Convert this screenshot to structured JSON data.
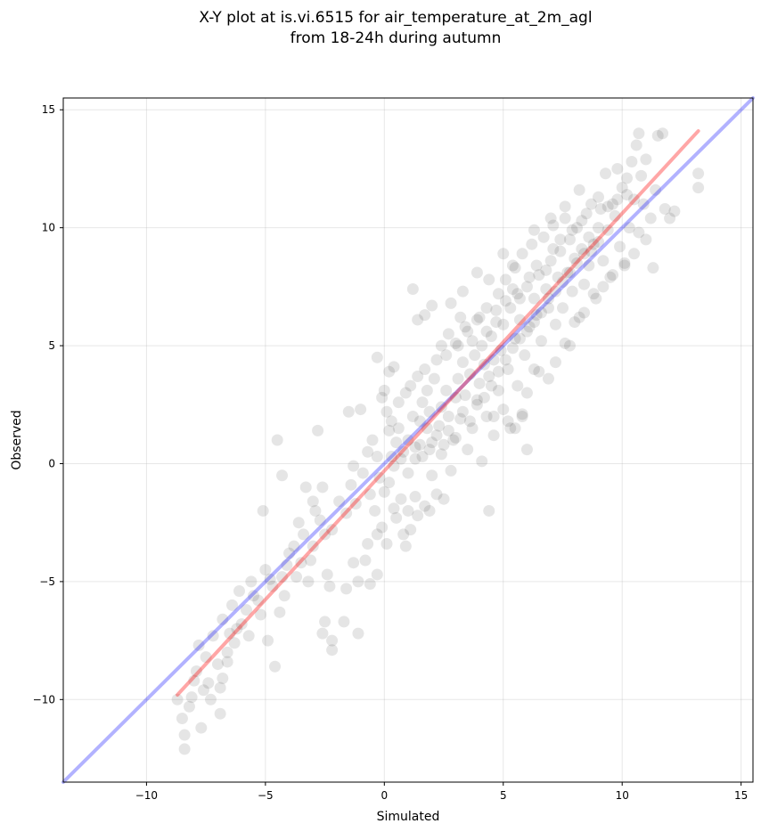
{
  "chart_data": {
    "type": "scatter",
    "title": "X-Y plot at is.vi.6515 for air_temperature_at_2m_agl",
    "subtitle": "from 18-24h during autumn",
    "xlabel": "Simulated",
    "ylabel": "Observed",
    "xlim": [
      -13.5,
      15.5
    ],
    "ylim": [
      -13.5,
      15.5
    ],
    "xticks": [
      -10,
      -5,
      0,
      5,
      10,
      15
    ],
    "yticks": [
      -10,
      -5,
      0,
      5,
      10,
      15
    ],
    "xtick_labels": [
      "−10",
      "−5",
      "0",
      "5",
      "10",
      "15"
    ],
    "ytick_labels": [
      "−10",
      "−5",
      "0",
      "5",
      "10",
      "15"
    ],
    "grid": true,
    "point_color": "#000000",
    "point_alpha": 0.1,
    "lines": [
      {
        "color": "#0000ff",
        "alpha": 0.3,
        "x": [
          -13.5,
          15.5
        ],
        "y": [
          -13.5,
          15.5
        ]
      },
      {
        "color": "#ff0000",
        "alpha": 0.35,
        "x": [
          -8.7,
          13.2
        ],
        "y": [
          -9.8,
          14.1
        ]
      }
    ],
    "points": [
      [
        -8.7,
        -10.0
      ],
      [
        -8.5,
        -10.8
      ],
      [
        -8.4,
        -12.1
      ],
      [
        -8.4,
        -11.5
      ],
      [
        -8.2,
        -10.3
      ],
      [
        -8.0,
        -9.2
      ],
      [
        -7.7,
        -11.2
      ],
      [
        -7.6,
        -9.6
      ],
      [
        -7.4,
        -9.3
      ],
      [
        -6.9,
        -10.6
      ],
      [
        -6.9,
        -9.5
      ],
      [
        -6.8,
        -9.1
      ],
      [
        -6.6,
        -8.4
      ],
      [
        -7.0,
        -8.5
      ],
      [
        -7.8,
        -7.7
      ],
      [
        -6.8,
        -6.6
      ],
      [
        -6.5,
        -7.2
      ],
      [
        -6.4,
        -6.0
      ],
      [
        -6.1,
        -5.4
      ],
      [
        -5.5,
        -5.6
      ],
      [
        -5.2,
        -6.4
      ],
      [
        -4.9,
        -7.5
      ],
      [
        -4.6,
        -8.6
      ],
      [
        -4.4,
        -6.3
      ],
      [
        -4.8,
        -4.9
      ],
      [
        -4.3,
        -4.8
      ],
      [
        -4.1,
        -4.3
      ],
      [
        -5.1,
        -2.0
      ],
      [
        -4.5,
        1.0
      ],
      [
        -4.3,
        -0.5
      ],
      [
        -3.8,
        -3.5
      ],
      [
        -3.5,
        -4.2
      ],
      [
        -3.2,
        -5.0
      ],
      [
        -3.0,
        -3.5
      ],
      [
        -2.9,
        -2.0
      ],
      [
        -2.8,
        1.4
      ],
      [
        -2.6,
        -1.0
      ],
      [
        -2.5,
        -3.0
      ],
      [
        -2.4,
        -4.7
      ],
      [
        -2.3,
        -5.2
      ],
      [
        -2.6,
        -7.2
      ],
      [
        -2.5,
        -6.7
      ],
      [
        -2.2,
        -7.5
      ],
      [
        -2.2,
        -7.9
      ],
      [
        -1.7,
        -6.7
      ],
      [
        -1.6,
        -5.3
      ],
      [
        -1.3,
        -4.2
      ],
      [
        -1.1,
        -7.2
      ],
      [
        -1.1,
        -5.0
      ],
      [
        -0.6,
        -5.1
      ],
      [
        -0.3,
        -4.7
      ],
      [
        -0.8,
        -4.1
      ],
      [
        -0.7,
        -3.4
      ],
      [
        -0.3,
        -3.0
      ],
      [
        -0.1,
        -2.7
      ],
      [
        0.1,
        -3.4
      ],
      [
        -1.5,
        2.2
      ],
      [
        -1.0,
        2.3
      ],
      [
        -1.3,
        -0.1
      ],
      [
        -0.7,
        0.5
      ],
      [
        -0.5,
        1.0
      ],
      [
        -0.3,
        0.3
      ],
      [
        -0.2,
        -0.6
      ],
      [
        0.0,
        -1.2
      ],
      [
        0.2,
        -0.8
      ],
      [
        0.3,
        0.3
      ],
      [
        0.5,
        0.9
      ],
      [
        0.2,
        1.4
      ],
      [
        0.1,
        2.2
      ],
      [
        -0.1,
        2.8
      ],
      [
        0.0,
        3.1
      ],
      [
        0.2,
        3.9
      ],
      [
        0.4,
        4.1
      ],
      [
        -0.3,
        4.5
      ],
      [
        0.4,
        -1.9
      ],
      [
        0.5,
        -2.3
      ],
      [
        0.7,
        -1.5
      ],
      [
        0.8,
        -3.0
      ],
      [
        0.9,
        -3.5
      ],
      [
        1.1,
        -2.8
      ],
      [
        1.0,
        -2.0
      ],
      [
        1.3,
        -1.4
      ],
      [
        1.4,
        -2.2
      ],
      [
        1.7,
        -1.8
      ],
      [
        1.9,
        -2.0
      ],
      [
        2.0,
        -0.5
      ],
      [
        2.2,
        -1.3
      ],
      [
        2.5,
        -1.5
      ],
      [
        0.6,
        1.5
      ],
      [
        0.8,
        0.5
      ],
      [
        1.0,
        1.0
      ],
      [
        1.2,
        2.0
      ],
      [
        1.3,
        0.2
      ],
      [
        1.5,
        0.8
      ],
      [
        1.5,
        1.8
      ],
      [
        1.6,
        2.6
      ],
      [
        1.8,
        1.5
      ],
      [
        1.8,
        3.1
      ],
      [
        1.9,
        2.2
      ],
      [
        2.0,
        0.9
      ],
      [
        2.1,
        3.6
      ],
      [
        2.3,
        1.6
      ],
      [
        2.4,
        2.4
      ],
      [
        2.5,
        0.8
      ],
      [
        2.6,
        3.1
      ],
      [
        2.6,
        4.6
      ],
      [
        2.7,
        2.0
      ],
      [
        2.8,
        -0.3
      ],
      [
        2.9,
        1.0
      ],
      [
        3.0,
        2.8
      ],
      [
        3.0,
        5.1
      ],
      [
        3.1,
        3.6
      ],
      [
        3.2,
        1.9
      ],
      [
        3.3,
        4.3
      ],
      [
        3.4,
        2.9
      ],
      [
        3.5,
        0.6
      ],
      [
        3.5,
        5.6
      ],
      [
        3.6,
        3.8
      ],
      [
        3.7,
        1.5
      ],
      [
        3.8,
        4.6
      ],
      [
        3.9,
        2.7
      ],
      [
        3.9,
        6.1
      ],
      [
        4.0,
        3.4
      ],
      [
        4.1,
        5.0
      ],
      [
        4.1,
        0.1
      ],
      [
        4.2,
        4.2
      ],
      [
        4.3,
        2.0
      ],
      [
        4.3,
        6.6
      ],
      [
        4.4,
        3.7
      ],
      [
        4.5,
        5.4
      ],
      [
        4.4,
        -2.0
      ],
      [
        4.6,
        1.2
      ],
      [
        4.6,
        4.4
      ],
      [
        4.7,
        6.0
      ],
      [
        4.8,
        3.1
      ],
      [
        4.8,
        7.2
      ],
      [
        4.9,
        4.8
      ],
      [
        5.0,
        2.3
      ],
      [
        5.0,
        5.9
      ],
      [
        5.1,
        7.8
      ],
      [
        5.2,
        4.0
      ],
      [
        5.3,
        6.6
      ],
      [
        5.3,
        1.5
      ],
      [
        5.4,
        8.4
      ],
      [
        5.5,
        5.3
      ],
      [
        5.6,
        3.3
      ],
      [
        5.6,
        7.2
      ],
      [
        5.7,
        6.1
      ],
      [
        5.8,
        2.0
      ],
      [
        5.8,
        8.9
      ],
      [
        5.9,
        4.6
      ],
      [
        6.0,
        7.5
      ],
      [
        6.0,
        0.6
      ],
      [
        6.1,
        5.8
      ],
      [
        6.2,
        9.3
      ],
      [
        6.3,
        4.0
      ],
      [
        6.3,
        7.0
      ],
      [
        6.4,
        6.3
      ],
      [
        6.5,
        8.0
      ],
      [
        6.6,
        5.2
      ],
      [
        6.7,
        9.6
      ],
      [
        6.8,
        7.4
      ],
      [
        6.9,
        3.6
      ],
      [
        6.9,
        6.6
      ],
      [
        7.0,
        8.6
      ],
      [
        7.1,
        10.1
      ],
      [
        7.2,
        5.9
      ],
      [
        7.3,
        7.9
      ],
      [
        7.4,
        9.0
      ],
      [
        7.5,
        6.6
      ],
      [
        7.6,
        10.4
      ],
      [
        7.7,
        8.1
      ],
      [
        7.8,
        5.0
      ],
      [
        7.8,
        9.5
      ],
      [
        7.9,
        7.3
      ],
      [
        8.0,
        8.7
      ],
      [
        8.1,
        10.0
      ],
      [
        8.2,
        6.2
      ],
      [
        8.3,
        9.1
      ],
      [
        8.4,
        7.6
      ],
      [
        8.5,
        10.6
      ],
      [
        8.6,
        8.4
      ],
      [
        8.7,
        11.0
      ],
      [
        8.8,
        9.3
      ],
      [
        8.9,
        7.0
      ],
      [
        9.0,
        10.0
      ],
      [
        9.0,
        11.3
      ],
      [
        9.2,
        8.6
      ],
      [
        9.3,
        12.3
      ],
      [
        9.4,
        9.9
      ],
      [
        9.5,
        7.9
      ],
      [
        9.6,
        11.0
      ],
      [
        9.7,
        10.5
      ],
      [
        9.8,
        12.5
      ],
      [
        9.9,
        9.2
      ],
      [
        10.0,
        11.7
      ],
      [
        10.1,
        8.5
      ],
      [
        10.2,
        12.1
      ],
      [
        10.3,
        10.0
      ],
      [
        10.4,
        12.8
      ],
      [
        10.5,
        11.2
      ],
      [
        10.6,
        13.5
      ],
      [
        10.7,
        9.8
      ],
      [
        10.7,
        14.0
      ],
      [
        10.8,
        12.2
      ],
      [
        10.9,
        11.0
      ],
      [
        11.0,
        12.9
      ],
      [
        11.2,
        10.4
      ],
      [
        11.3,
        8.3
      ],
      [
        11.4,
        11.6
      ],
      [
        11.5,
        13.9
      ],
      [
        11.7,
        14.0
      ],
      [
        11.8,
        10.8
      ],
      [
        12.0,
        10.4
      ],
      [
        12.2,
        10.7
      ],
      [
        13.2,
        11.7
      ],
      [
        13.2,
        12.3
      ],
      [
        1.2,
        7.4
      ],
      [
        1.4,
        6.1
      ],
      [
        1.7,
        6.3
      ],
      [
        2.0,
        6.7
      ],
      [
        2.8,
        6.8
      ],
      [
        3.2,
        6.2
      ],
      [
        3.3,
        7.3
      ],
      [
        3.9,
        8.1
      ],
      [
        4.4,
        7.8
      ],
      [
        5.0,
        8.9
      ],
      [
        5.5,
        8.3
      ],
      [
        6.3,
        9.9
      ],
      [
        7.0,
        10.4
      ],
      [
        7.6,
        10.9
      ],
      [
        8.2,
        11.6
      ],
      [
        4.6,
        2.0
      ],
      [
        5.2,
        1.8
      ],
      [
        5.5,
        1.5
      ],
      [
        5.8,
        2.1
      ],
      [
        6.0,
        3.0
      ],
      [
        6.5,
        3.9
      ],
      [
        7.2,
        4.3
      ],
      [
        7.6,
        5.1
      ],
      [
        8.0,
        6.0
      ],
      [
        8.4,
        6.4
      ],
      [
        8.8,
        7.2
      ],
      [
        9.2,
        7.5
      ],
      [
        9.6,
        8.0
      ],
      [
        10.1,
        8.4
      ],
      [
        10.5,
        8.9
      ],
      [
        11.0,
        9.5
      ],
      [
        -3.6,
        -2.5
      ],
      [
        -3.3,
        -1.0
      ],
      [
        -3.0,
        -1.6
      ],
      [
        -2.7,
        -2.4
      ],
      [
        -2.2,
        -2.8
      ],
      [
        -1.9,
        -1.6
      ],
      [
        -1.6,
        -2.1
      ],
      [
        -1.4,
        -0.9
      ],
      [
        -1.2,
        -1.7
      ],
      [
        -0.9,
        -0.4
      ],
      [
        -0.6,
        -1.3
      ],
      [
        -0.4,
        -2.0
      ],
      [
        -5.8,
        -6.2
      ],
      [
        -5.6,
        -5.0
      ],
      [
        -5.3,
        -5.8
      ],
      [
        -5.0,
        -4.5
      ],
      [
        -4.7,
        -5.2
      ],
      [
        -4.2,
        -5.6
      ],
      [
        -4.0,
        -3.8
      ],
      [
        -3.7,
        -4.8
      ],
      [
        -3.4,
        -3.0
      ],
      [
        -3.1,
        -4.1
      ],
      [
        -6.2,
        -7.0
      ],
      [
        -6.0,
        -6.8
      ],
      [
        -5.7,
        -7.3
      ],
      [
        -7.2,
        -7.3
      ],
      [
        -7.5,
        -8.2
      ],
      [
        -7.9,
        -8.8
      ],
      [
        -8.1,
        -9.9
      ],
      [
        -7.3,
        -10.0
      ],
      [
        -6.6,
        -8.0
      ],
      [
        -6.3,
        -7.6
      ],
      [
        0.3,
        1.8
      ],
      [
        0.6,
        2.6
      ],
      [
        0.9,
        3.0
      ],
      [
        1.1,
        3.3
      ],
      [
        1.4,
        3.7
      ],
      [
        1.7,
        4.0
      ],
      [
        2.2,
        4.4
      ],
      [
        2.4,
        5.0
      ],
      [
        2.7,
        5.5
      ],
      [
        3.1,
        5.0
      ],
      [
        3.4,
        5.8
      ],
      [
        3.7,
        5.2
      ],
      [
        4.0,
        6.2
      ],
      [
        4.3,
        5.6
      ],
      [
        4.7,
        6.5
      ],
      [
        5.1,
        6.9
      ],
      [
        5.4,
        7.4
      ],
      [
        5.7,
        7.0
      ],
      [
        6.1,
        7.9
      ],
      [
        6.4,
        8.4
      ],
      [
        6.8,
        8.2
      ],
      [
        7.1,
        9.1
      ],
      [
        7.4,
        9.5
      ],
      [
        7.9,
        9.9
      ],
      [
        8.3,
        10.3
      ],
      [
        8.6,
        9.6
      ],
      [
        9.1,
        10.8
      ],
      [
        9.4,
        10.9
      ],
      [
        9.8,
        11.2
      ],
      [
        10.2,
        11.4
      ],
      [
        0.4,
        -0.1
      ],
      [
        0.7,
        0.2
      ],
      [
        1.0,
        -0.4
      ],
      [
        1.3,
        0.7
      ],
      [
        1.6,
        0.3
      ],
      [
        1.9,
        0.6
      ],
      [
        2.2,
        1.2
      ],
      [
        2.4,
        0.4
      ],
      [
        2.7,
        1.4
      ],
      [
        3.0,
        1.1
      ],
      [
        3.3,
        2.2
      ],
      [
        3.6,
        1.8
      ],
      [
        3.9,
        2.5
      ],
      [
        4.2,
        2.8
      ],
      [
        4.5,
        3.3
      ],
      [
        4.8,
        3.9
      ],
      [
        5.1,
        4.4
      ],
      [
        5.4,
        4.9
      ],
      [
        5.7,
        5.3
      ],
      [
        6.0,
        5.6
      ],
      [
        6.3,
        6.0
      ],
      [
        6.6,
        6.4
      ],
      [
        6.9,
        7.0
      ],
      [
        7.2,
        7.3
      ],
      [
        7.5,
        7.7
      ],
      [
        7.8,
        8.1
      ],
      [
        8.1,
        8.5
      ],
      [
        8.4,
        8.9
      ],
      [
        8.7,
        9.0
      ],
      [
        9.0,
        9.4
      ]
    ]
  }
}
